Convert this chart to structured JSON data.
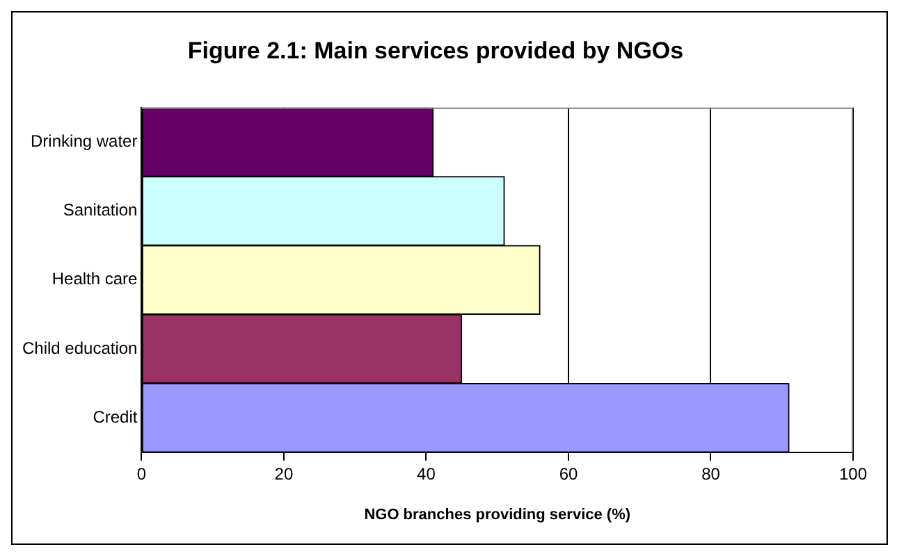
{
  "chart_data": {
    "type": "bar",
    "orientation": "horizontal",
    "title": "Figure 2.1: Main services provided by NGOs",
    "xlabel": "NGO branches providing service (%)",
    "categories": [
      "Drinking water",
      "Sanitation",
      "Health care",
      "Child education",
      "Credit"
    ],
    "values": [
      41,
      51,
      56,
      45,
      91
    ],
    "colors": [
      "#660066",
      "#ccffff",
      "#ffffcc",
      "#993366",
      "#9999ff"
    ],
    "xlim": [
      0,
      100
    ],
    "xticks": [
      0,
      20,
      40,
      60,
      80,
      100
    ],
    "grid": "x",
    "legend": false
  }
}
